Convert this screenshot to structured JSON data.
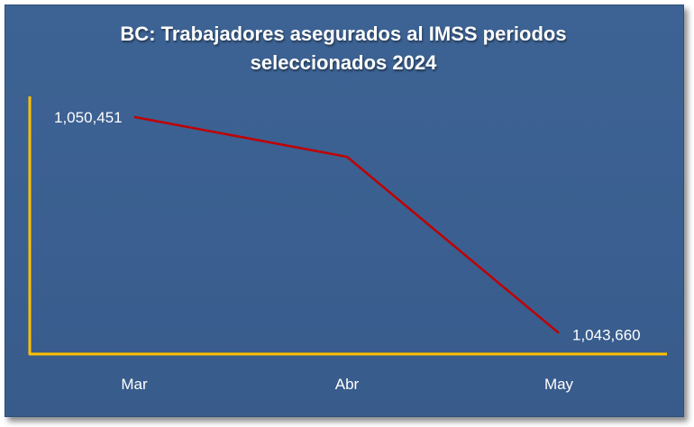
{
  "chart_data": {
    "type": "line",
    "title_line1": "BC: Trabajadores asegurados al IMSS periodos",
    "title_line2": "seleccionados 2024",
    "categories": [
      "Mar",
      "Abr",
      "May"
    ],
    "series": [
      {
        "values": [
          1050451,
          1049200,
          1043660
        ],
        "data_labels": [
          "1,050,451",
          "",
          "1,043,660"
        ]
      }
    ],
    "ylim": [
      1043000,
      1051100
    ],
    "grid": false,
    "legend": "none",
    "colors": {
      "background": "#3b6092",
      "line": "#c00000",
      "axis": "#ffc000"
    }
  }
}
